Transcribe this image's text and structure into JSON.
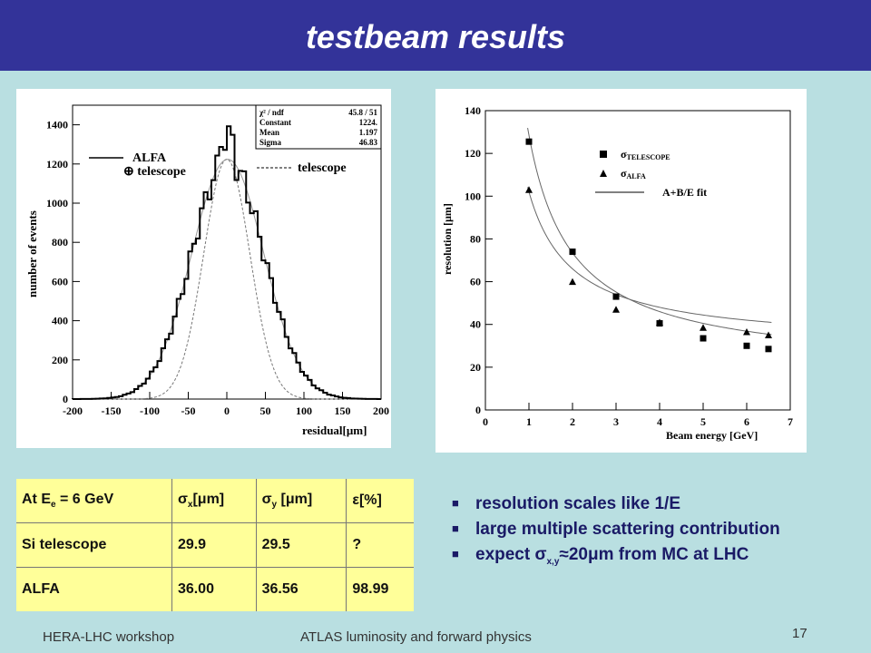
{
  "slide": {
    "title": "testbeam results",
    "footer_left": "HERA-LHC workshop",
    "footer_center": "ATLAS luminosity and forward physics",
    "page_number": "17"
  },
  "left_plot": {
    "legend_alfa": "ALFA",
    "legend_alfa_telescope": "⊕ telescope",
    "legend_telescope": "telescope",
    "stats": [
      {
        "label": "χ² / ndf",
        "value": "45.8 / 51"
      },
      {
        "label": "Constant",
        "value": "1224."
      },
      {
        "label": "Mean",
        "value": "1.197"
      },
      {
        "label": "Sigma",
        "value": "46.83"
      }
    ]
  },
  "right_plot": {
    "legend_telescope": "σTELESCOPE",
    "legend_alfa": "σALFA",
    "legend_fit": "A+B/E fit"
  },
  "chart_data": [
    {
      "type": "histogram",
      "xlabel": "residual[μm]",
      "ylabel": "number of events",
      "xlim": [
        -200,
        200
      ],
      "ylim": [
        0,
        1500
      ],
      "xticks": [
        -200,
        -150,
        -100,
        -50,
        0,
        50,
        100,
        150,
        200
      ],
      "yticks": [
        0,
        200,
        400,
        600,
        800,
        1000,
        1200,
        1400
      ],
      "series": [
        {
          "name": "ALFA ⊕ telescope",
          "fit": {
            "constant": 1224,
            "mean": 1.197,
            "sigma": 46.83
          }
        },
        {
          "name": "telescope",
          "fit": {
            "constant": 1224,
            "mean": 0,
            "sigma": 29.9
          }
        }
      ]
    },
    {
      "type": "scatter",
      "xlabel": "Beam energy [GeV]",
      "ylabel": "resolution [μm]",
      "xlim": [
        0,
        7
      ],
      "ylim": [
        0,
        140
      ],
      "xticks": [
        0,
        1,
        2,
        3,
        4,
        5,
        6,
        7
      ],
      "yticks": [
        0,
        20,
        40,
        60,
        80,
        100,
        120,
        140
      ],
      "series": [
        {
          "name": "σTELESCOPE",
          "marker": "square",
          "x": [
            1,
            2,
            3,
            4,
            5,
            6,
            6.5
          ],
          "y": [
            125.5,
            74,
            53,
            40.5,
            33.5,
            30,
            28.5
          ]
        },
        {
          "name": "σALFA",
          "marker": "triangle",
          "x": [
            1,
            2,
            3,
            4,
            5,
            6,
            6.5
          ],
          "y": [
            103,
            60,
            47,
            41,
            38.5,
            36.5,
            35
          ]
        }
      ],
      "fits": [
        {
          "name": "A+B/E fit",
          "A": 18.5,
          "B": 110
        },
        {
          "name": "A+B/E fit",
          "A": 30,
          "B": 72
        }
      ]
    }
  ],
  "table": {
    "headers": [
      "At Ee = 6 GeV",
      "σx[μm]",
      "σy [μm]",
      "ε[%]"
    ],
    "rows": [
      [
        "Si telescope",
        "29.9",
        "29.5",
        "?"
      ],
      [
        "ALFA",
        "36.00",
        "36.56",
        "98.99"
      ]
    ]
  },
  "bullets": [
    "resolution scales like 1/E",
    "large multiple scattering contribution",
    "expect σx,y≈20μm from MC at LHC"
  ]
}
